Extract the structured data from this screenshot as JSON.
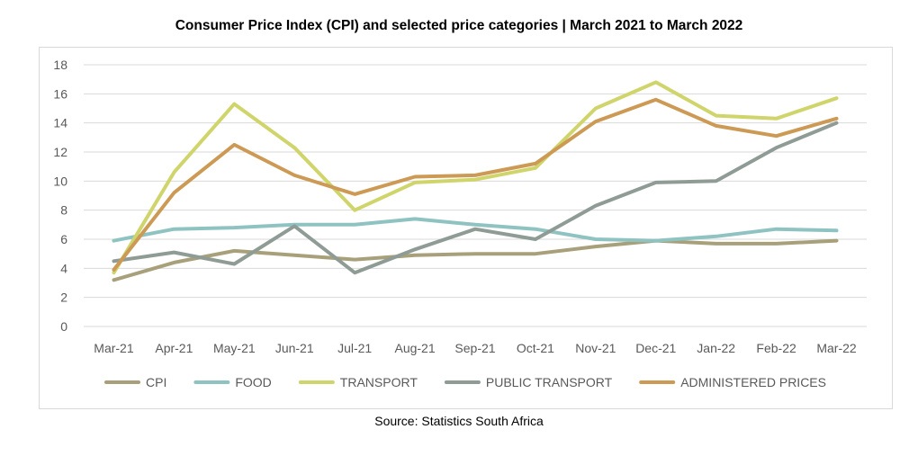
{
  "title": "Consumer Price Index (CPI) and selected price categories | March 2021 to March 2022",
  "source": "Source: Statistics South Africa",
  "chart_data": {
    "type": "line",
    "title": "Consumer Price Index (CPI) and selected price categories | March 2021 to March 2022",
    "xlabel": "",
    "ylabel": "",
    "ylim": [
      0,
      18
    ],
    "yticks": [
      0,
      2,
      4,
      6,
      8,
      10,
      12,
      14,
      16,
      18
    ],
    "grid": true,
    "legend_position": "bottom",
    "categories": [
      "Mar-21",
      "Apr-21",
      "May-21",
      "Jun-21",
      "Jul-21",
      "Aug-21",
      "Sep-21",
      "Oct-21",
      "Nov-21",
      "Dec-21",
      "Jan-22",
      "Feb-22",
      "Mar-22"
    ],
    "series": [
      {
        "name": "CPI",
        "color": "#a8a07a",
        "values": [
          3.2,
          4.4,
          5.2,
          4.9,
          4.6,
          4.9,
          5.0,
          5.0,
          5.5,
          5.9,
          5.7,
          5.7,
          5.9
        ]
      },
      {
        "name": "FOOD",
        "color": "#8fc3c1",
        "values": [
          5.9,
          6.7,
          6.8,
          7.0,
          7.0,
          7.4,
          7.0,
          6.7,
          6.0,
          5.9,
          6.2,
          6.7,
          6.6
        ]
      },
      {
        "name": "TRANSPORT",
        "color": "#cfd46b",
        "values": [
          3.7,
          10.6,
          15.3,
          12.3,
          8.0,
          9.9,
          10.1,
          10.9,
          15.0,
          16.8,
          14.5,
          14.3,
          15.7
        ]
      },
      {
        "name": "PUBLIC TRANSPORT",
        "color": "#8f9b95",
        "values": [
          4.5,
          5.1,
          4.3,
          6.9,
          3.7,
          5.3,
          6.7,
          6.0,
          8.3,
          9.9,
          10.0,
          12.3,
          14.0
        ]
      },
      {
        "name": "ADMINISTERED PRICES",
        "color": "#cc9a54",
        "values": [
          3.9,
          9.2,
          12.5,
          10.4,
          9.1,
          10.3,
          10.4,
          11.2,
          14.1,
          15.6,
          13.8,
          13.1,
          14.3
        ]
      }
    ]
  }
}
